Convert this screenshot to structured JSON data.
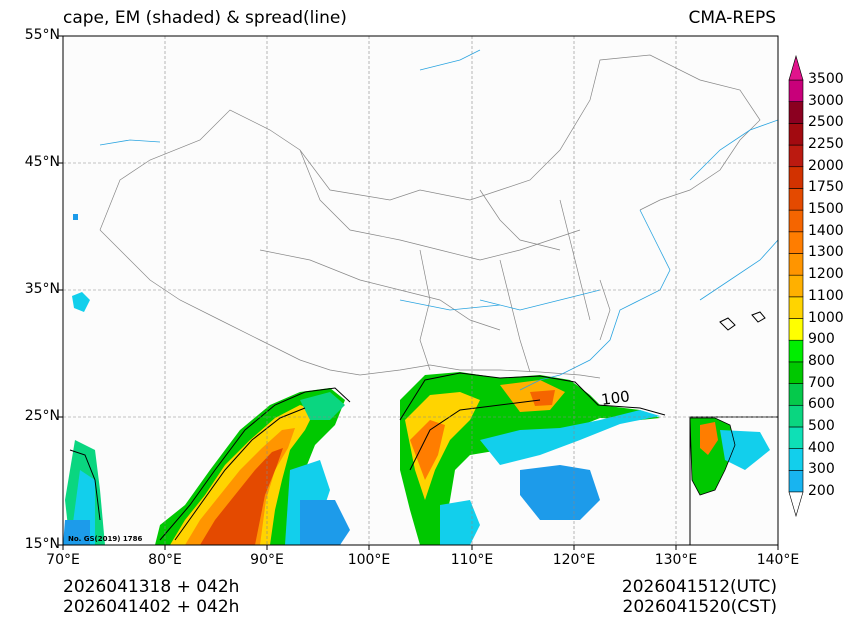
{
  "header": {
    "title": "cape, EM (shaded) & spread(line)",
    "model": "CMA-REPS"
  },
  "map": {
    "lat_labels": [
      "55°N",
      "45°N",
      "35°N",
      "25°N",
      "15°N"
    ],
    "lon_labels": [
      "70°E",
      "80°E",
      "90°E",
      "100°E",
      "110°E",
      "120°E",
      "130°E",
      "140°E"
    ],
    "credit": "No. GS(2019) 1786",
    "contour_labels": [
      "100"
    ]
  },
  "colorbar": {
    "levels": [
      "200",
      "300",
      "400",
      "500",
      "600",
      "700",
      "800",
      "900",
      "1000",
      "1100",
      "1200",
      "1300",
      "1400",
      "1500",
      "1750",
      "2000",
      "2250",
      "2500",
      "3000",
      "3500"
    ],
    "colors": [
      "#1d9bea",
      "#18b4f0",
      "#12cfec",
      "#0ee0b6",
      "#0ad680",
      "#05c94b",
      "#00c800",
      "#00ee00",
      "#ffff00",
      "#ffd400",
      "#ffb000",
      "#ff9500",
      "#ff7d00",
      "#f56500",
      "#e44a00",
      "#d23200",
      "#bb1a10",
      "#a20a10",
      "#8b0020",
      "#c8007a"
    ],
    "extend_top_color": "#e0148c"
  },
  "footer": {
    "init_utc": "2026041318  +  042h",
    "init_cst": "2026041402  +  042h",
    "valid_utc": "2026041512(UTC)",
    "valid_cst": "2026041520(CST)"
  }
}
